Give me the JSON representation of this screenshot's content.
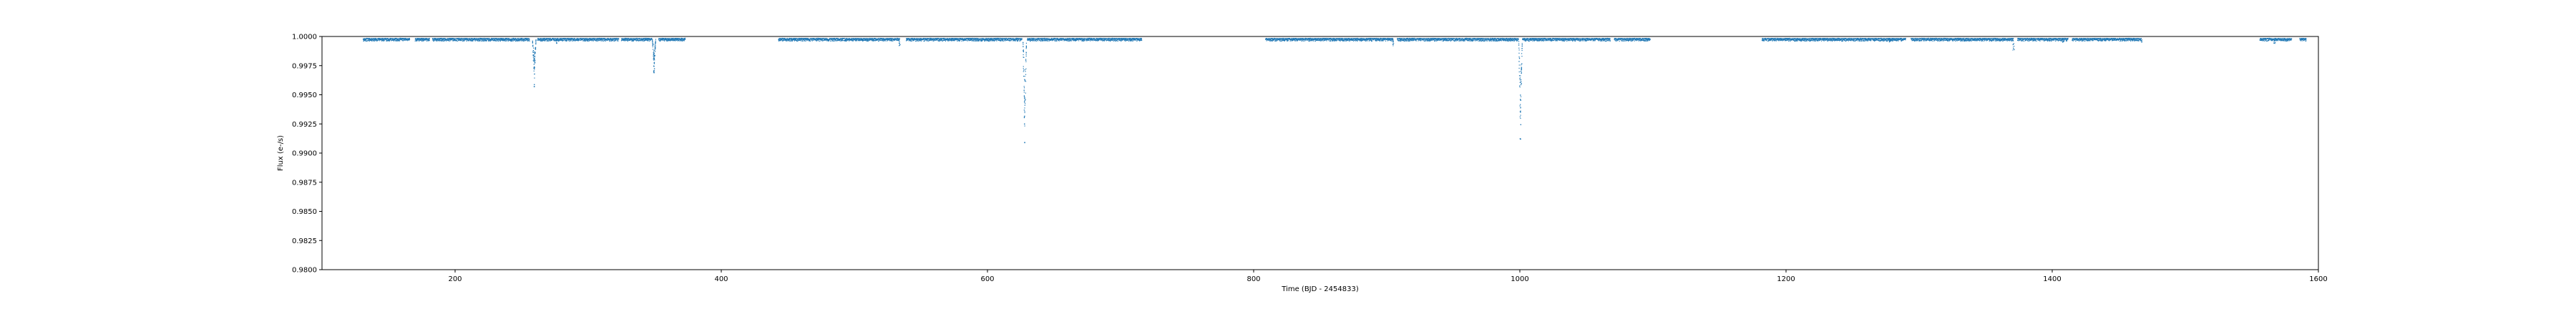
{
  "chart_data": {
    "type": "scatter",
    "title": "",
    "xlabel": "Time (BJD - 2454833)",
    "ylabel": "Flux (e-/s)",
    "xlim": [
      100,
      1600
    ],
    "ylim": [
      0.98,
      1.0
    ],
    "xticks": [
      200,
      400,
      600,
      800,
      1000,
      1200,
      1400,
      1600
    ],
    "yticks": [
      0.98,
      0.9825,
      0.985,
      0.9875,
      0.99,
      0.9925,
      0.995,
      0.9975,
      1.0
    ],
    "ytick_labels": [
      "0.9800",
      "0.9825",
      "0.9850",
      "0.9875",
      "0.9900",
      "0.9925",
      "0.9950",
      "0.9975",
      "1.0000"
    ],
    "grid": false,
    "marker_color": "#1f77b4",
    "series": [
      {
        "segments": [
          [
            131,
            166
          ],
          [
            170,
            181
          ],
          [
            183,
            256
          ],
          [
            262,
            323
          ],
          [
            325,
            348
          ],
          [
            353,
            373
          ],
          [
            443,
            534
          ],
          [
            539,
            626
          ],
          [
            630,
            716
          ],
          [
            809,
            905
          ],
          [
            908,
            999
          ],
          [
            1002,
            1068
          ],
          [
            1071,
            1098
          ],
          [
            1182,
            1290
          ],
          [
            1294,
            1371
          ],
          [
            1374,
            1412
          ],
          [
            1415,
            1467
          ],
          [
            1556,
            1580
          ],
          [
            1586,
            1591
          ]
        ],
        "baseline": 0.99985,
        "scatter_amplitude": 0.0004,
        "dips": [
          {
            "x": 259.5,
            "y": 0.9957
          },
          {
            "x": 349.5,
            "y": 0.9969
          },
          {
            "x": 628.0,
            "y": 0.9909
          },
          {
            "x": 1000.5,
            "y": 0.9912
          }
        ],
        "minor_dips": [
          {
            "x": 276,
            "y": 0.9994
          },
          {
            "x": 534,
            "y": 0.9992
          },
          {
            "x": 905,
            "y": 0.9992
          },
          {
            "x": 1278,
            "y": 0.9995
          },
          {
            "x": 1371,
            "y": 0.9988
          },
          {
            "x": 1408,
            "y": 0.9995
          },
          {
            "x": 1467,
            "y": 0.9995
          },
          {
            "x": 1567,
            "y": 0.9994
          }
        ]
      }
    ]
  }
}
